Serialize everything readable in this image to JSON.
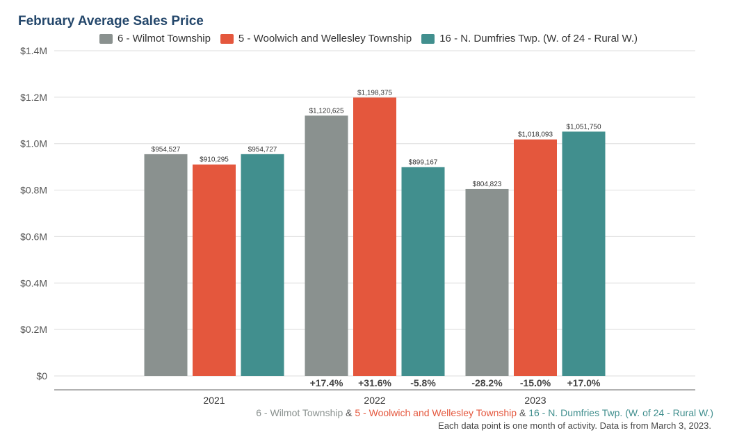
{
  "chart_data": {
    "type": "bar",
    "title": "February Average Sales Price",
    "categories": [
      "2021",
      "2022",
      "2023"
    ],
    "series": [
      {
        "name": "6 - Wilmot Township",
        "color": "#8a918f",
        "values": [
          954527,
          1120625,
          804823
        ],
        "labels": [
          "$954,527",
          "$1,120,625",
          "$804,823"
        ],
        "changes": [
          "",
          "+17.4%",
          "-28.2%"
        ]
      },
      {
        "name": "5 - Woolwich and Wellesley Township",
        "color": "#e4573d",
        "values": [
          910295,
          1198375,
          1018093
        ],
        "labels": [
          "$910,295",
          "$1,198,375",
          "$1,018,093"
        ],
        "changes": [
          "",
          "+31.6%",
          "-15.0%"
        ]
      },
      {
        "name": "16 - N. Dumfries Twp. (W. of 24 - Rural W.)",
        "color": "#418f8e",
        "values": [
          954727,
          899167,
          1051750
        ],
        "labels": [
          "$954,727",
          "$899,167",
          "$1,051,750"
        ],
        "changes": [
          "",
          "-5.8%",
          "+17.0%"
        ]
      }
    ],
    "ylim": [
      0,
      1400000
    ],
    "yticks": [
      0,
      200000,
      400000,
      600000,
      800000,
      1000000,
      1200000,
      1400000
    ],
    "ytick_labels": [
      "$0",
      "$0.2M",
      "$0.4M",
      "$0.6M",
      "$0.8M",
      "$1.0M",
      "$1.2M",
      "$1.4M"
    ],
    "grid": true,
    "legend_position": "top"
  },
  "caption": {
    "part1": "6 - Wilmot Township",
    "sep1": " & ",
    "part2": "5 - Woolwich and Wellesley Township",
    "sep2": " & ",
    "part3": "16 - N. Dumfries Twp. (W. of 24 - Rural W.)"
  },
  "note": "Each data point is one month of activity. Data is from March 3, 2023."
}
